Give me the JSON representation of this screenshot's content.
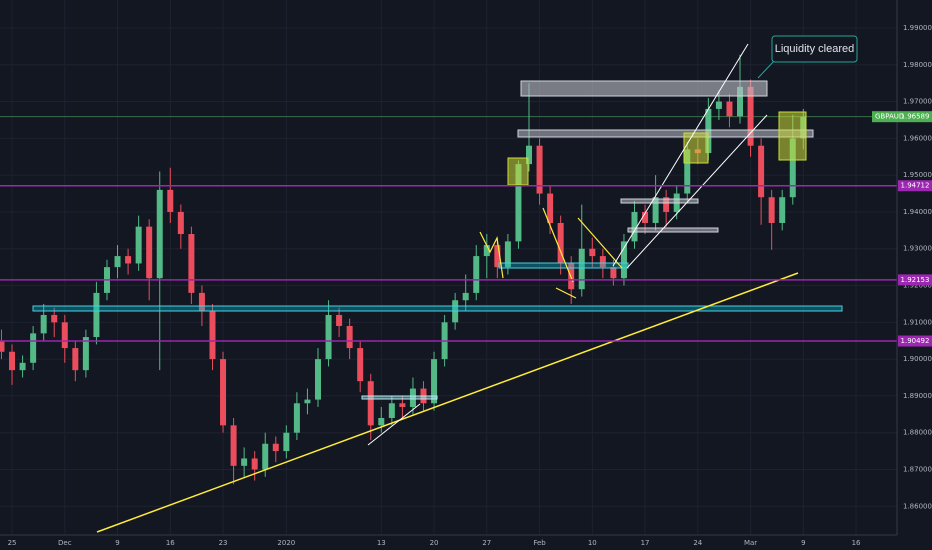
{
  "chart_data": {
    "type": "candlestick",
    "symbol": "GBPAUD",
    "up_color": "#53b987",
    "down_color": "#eb4d5c",
    "x": [
      -1,
      0,
      1,
      2,
      3,
      4,
      5,
      6,
      7,
      8,
      9,
      10,
      11,
      12,
      13,
      14,
      15,
      16,
      17,
      18,
      19,
      20,
      21,
      22,
      23,
      24,
      25,
      26,
      27,
      28,
      29,
      30,
      31,
      32,
      33,
      34,
      35,
      36,
      37,
      38,
      39,
      40,
      41,
      42,
      43,
      44,
      45,
      46,
      47,
      48,
      49,
      50,
      51,
      52,
      53,
      54,
      55,
      56,
      57,
      58,
      59,
      60,
      61,
      62,
      63,
      64,
      65,
      66,
      67,
      68,
      69,
      70,
      71,
      72,
      73,
      74,
      75
    ],
    "open": [
      1.905,
      1.902,
      1.897,
      1.899,
      1.907,
      1.912,
      1.91,
      1.903,
      1.897,
      1.906,
      1.918,
      1.925,
      1.928,
      1.926,
      1.936,
      1.922,
      1.946,
      1.94,
      1.934,
      1.918,
      1.913,
      1.9,
      1.882,
      1.871,
      1.873,
      1.87,
      1.877,
      1.875,
      1.88,
      1.888,
      1.889,
      1.9,
      1.912,
      1.909,
      1.903,
      1.894,
      1.882,
      1.884,
      1.888,
      1.887,
      1.892,
      1.888,
      1.9,
      1.91,
      1.916,
      1.918,
      1.928,
      1.931,
      1.925,
      1.932,
      1.953,
      1.958,
      1.945,
      1.937,
      1.926,
      1.919,
      1.93,
      1.928,
      1.925,
      1.922,
      1.932,
      1.94,
      1.937,
      1.944,
      1.94,
      1.945,
      1.957,
      1.956,
      1.968,
      1.97,
      1.966,
      1.974,
      1.958,
      1.944,
      1.937,
      1.944,
      1.96
    ],
    "high": [
      1.908,
      1.904,
      1.901,
      1.909,
      1.915,
      1.914,
      1.912,
      1.905,
      1.908,
      1.921,
      1.927,
      1.931,
      1.93,
      1.939,
      1.938,
      1.951,
      1.952,
      1.942,
      1.936,
      1.92,
      1.915,
      1.902,
      1.884,
      1.876,
      1.875,
      1.88,
      1.879,
      1.882,
      1.891,
      1.892,
      1.903,
      1.916,
      1.914,
      1.911,
      1.905,
      1.896,
      1.887,
      1.89,
      1.89,
      1.895,
      1.894,
      1.902,
      1.912,
      1.918,
      1.923,
      1.931,
      1.934,
      1.933,
      1.934,
      1.954,
      1.975,
      1.96,
      1.947,
      1.939,
      1.928,
      1.942,
      1.933,
      1.93,
      1.927,
      1.934,
      1.943,
      1.942,
      1.95,
      1.946,
      1.947,
      1.959,
      1.96,
      1.971,
      1.973,
      1.972,
      1.9827,
      1.976,
      1.96,
      1.946,
      1.946,
      1.9664,
      1.968
    ],
    "low": [
      1.9,
      1.893,
      1.895,
      1.897,
      1.905,
      1.906,
      1.899,
      1.894,
      1.895,
      1.904,
      1.916,
      1.922,
      1.923,
      1.924,
      1.916,
      1.897,
      1.937,
      1.93,
      1.915,
      1.909,
      1.897,
      1.88,
      1.866,
      1.868,
      1.867,
      1.868,
      1.872,
      1.873,
      1.878,
      1.885,
      1.887,
      1.898,
      1.906,
      1.9,
      1.891,
      1.878,
      1.88,
      1.882,
      1.884,
      1.885,
      1.886,
      1.886,
      1.898,
      1.908,
      1.913,
      1.916,
      1.922,
      1.922,
      1.923,
      1.93,
      1.951,
      1.942,
      1.934,
      1.923,
      1.915,
      1.917,
      1.925,
      1.922,
      1.92,
      1.92,
      1.93,
      1.934,
      1.935,
      1.936,
      1.938,
      1.943,
      1.953,
      1.954,
      1.965,
      1.963,
      1.964,
      1.955,
      1.9365,
      1.9297,
      1.935,
      1.942,
      1.957
    ],
    "close": [
      1.902,
      1.897,
      1.899,
      1.907,
      1.912,
      1.91,
      1.903,
      1.897,
      1.906,
      1.918,
      1.925,
      1.928,
      1.926,
      1.936,
      1.922,
      1.946,
      1.94,
      1.934,
      1.918,
      1.913,
      1.9,
      1.882,
      1.871,
      1.873,
      1.87,
      1.877,
      1.875,
      1.88,
      1.888,
      1.889,
      1.9,
      1.912,
      1.909,
      1.903,
      1.894,
      1.882,
      1.884,
      1.888,
      1.887,
      1.892,
      1.888,
      1.9,
      1.91,
      1.916,
      1.918,
      1.928,
      1.931,
      1.925,
      1.932,
      1.953,
      1.958,
      1.945,
      1.937,
      1.926,
      1.919,
      1.93,
      1.928,
      1.925,
      1.922,
      1.932,
      1.94,
      1.937,
      1.944,
      1.94,
      1.945,
      1.957,
      1.956,
      1.968,
      1.97,
      1.966,
      1.974,
      1.958,
      1.944,
      1.937,
      1.944,
      1.96,
      1.96589
    ],
    "xlim": [
      -1.14,
      83.88
    ],
    "ylim": [
      1.8522,
      1.9976
    ],
    "xticks": [
      {
        "value": 0,
        "label": "25"
      },
      {
        "value": 5,
        "label": "Dec"
      },
      {
        "value": 10,
        "label": "9"
      },
      {
        "value": 15,
        "label": "16"
      },
      {
        "value": 20,
        "label": "23"
      },
      {
        "value": 26,
        "label": "2020"
      },
      {
        "value": 35,
        "label": "13"
      },
      {
        "value": 40,
        "label": "20"
      },
      {
        "value": 45,
        "label": "27"
      },
      {
        "value": 50,
        "label": "Feb"
      },
      {
        "value": 55,
        "label": "10"
      },
      {
        "value": 60,
        "label": "17"
      },
      {
        "value": 65,
        "label": "24"
      },
      {
        "value": 70,
        "label": "Mar"
      },
      {
        "value": 75,
        "label": "9"
      },
      {
        "value": 80,
        "label": "16"
      }
    ],
    "yticks": [
      {
        "value": 1.99,
        "label": "1.99000"
      },
      {
        "value": 1.98,
        "label": "1.98000"
      },
      {
        "value": 1.97,
        "label": "1.97000"
      },
      {
        "value": 1.96,
        "label": "1.96000"
      },
      {
        "value": 1.95,
        "label": "1.95000"
      },
      {
        "value": 1.94,
        "label": "1.94000"
      },
      {
        "value": 1.93,
        "label": "1.93000"
      },
      {
        "value": 1.92,
        "label": "1.92000"
      },
      {
        "value": 1.91,
        "label": "1.91000"
      },
      {
        "value": 1.9,
        "label": "1.90000"
      },
      {
        "value": 1.89,
        "label": "1.89000"
      },
      {
        "value": 1.88,
        "label": "1.88000"
      },
      {
        "value": 1.87,
        "label": "1.87000"
      },
      {
        "value": 1.86,
        "label": "1.86000"
      }
    ],
    "grid": true,
    "levels": [
      {
        "value": 1.94712,
        "color": "#9c27b0"
      },
      {
        "value": 1.92153,
        "color": "#9c27b0"
      },
      {
        "value": 1.90492,
        "color": "#9c27b0"
      }
    ],
    "last_price": 1.96589,
    "last_price_color": "#4caf50",
    "annotations": [
      "Liquidity cleared"
    ]
  }
}
